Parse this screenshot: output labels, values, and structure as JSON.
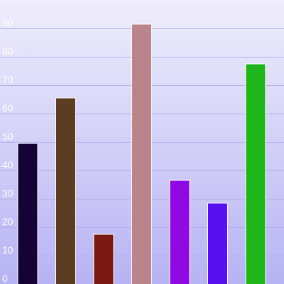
{
  "chart_data": {
    "type": "bar",
    "title": "",
    "xlabel": "",
    "ylabel": "",
    "ylim": [
      0,
      90
    ],
    "grid": true,
    "legend": "none",
    "y_ticks": [
      0,
      10,
      20,
      30,
      40,
      50,
      60,
      70,
      80,
      90
    ],
    "values": [
      49.5,
      65.5,
      17.5,
      91.5,
      36.5,
      28.5,
      77.5
    ],
    "colors": [
      "#120435",
      "#5a3d23",
      "#7a1812",
      "#b9858d",
      "#8e09e2",
      "#5710ef",
      "#21b51d"
    ]
  },
  "background": {
    "top_color": "#efeefc",
    "bottom_color": "#b7b3f4"
  }
}
